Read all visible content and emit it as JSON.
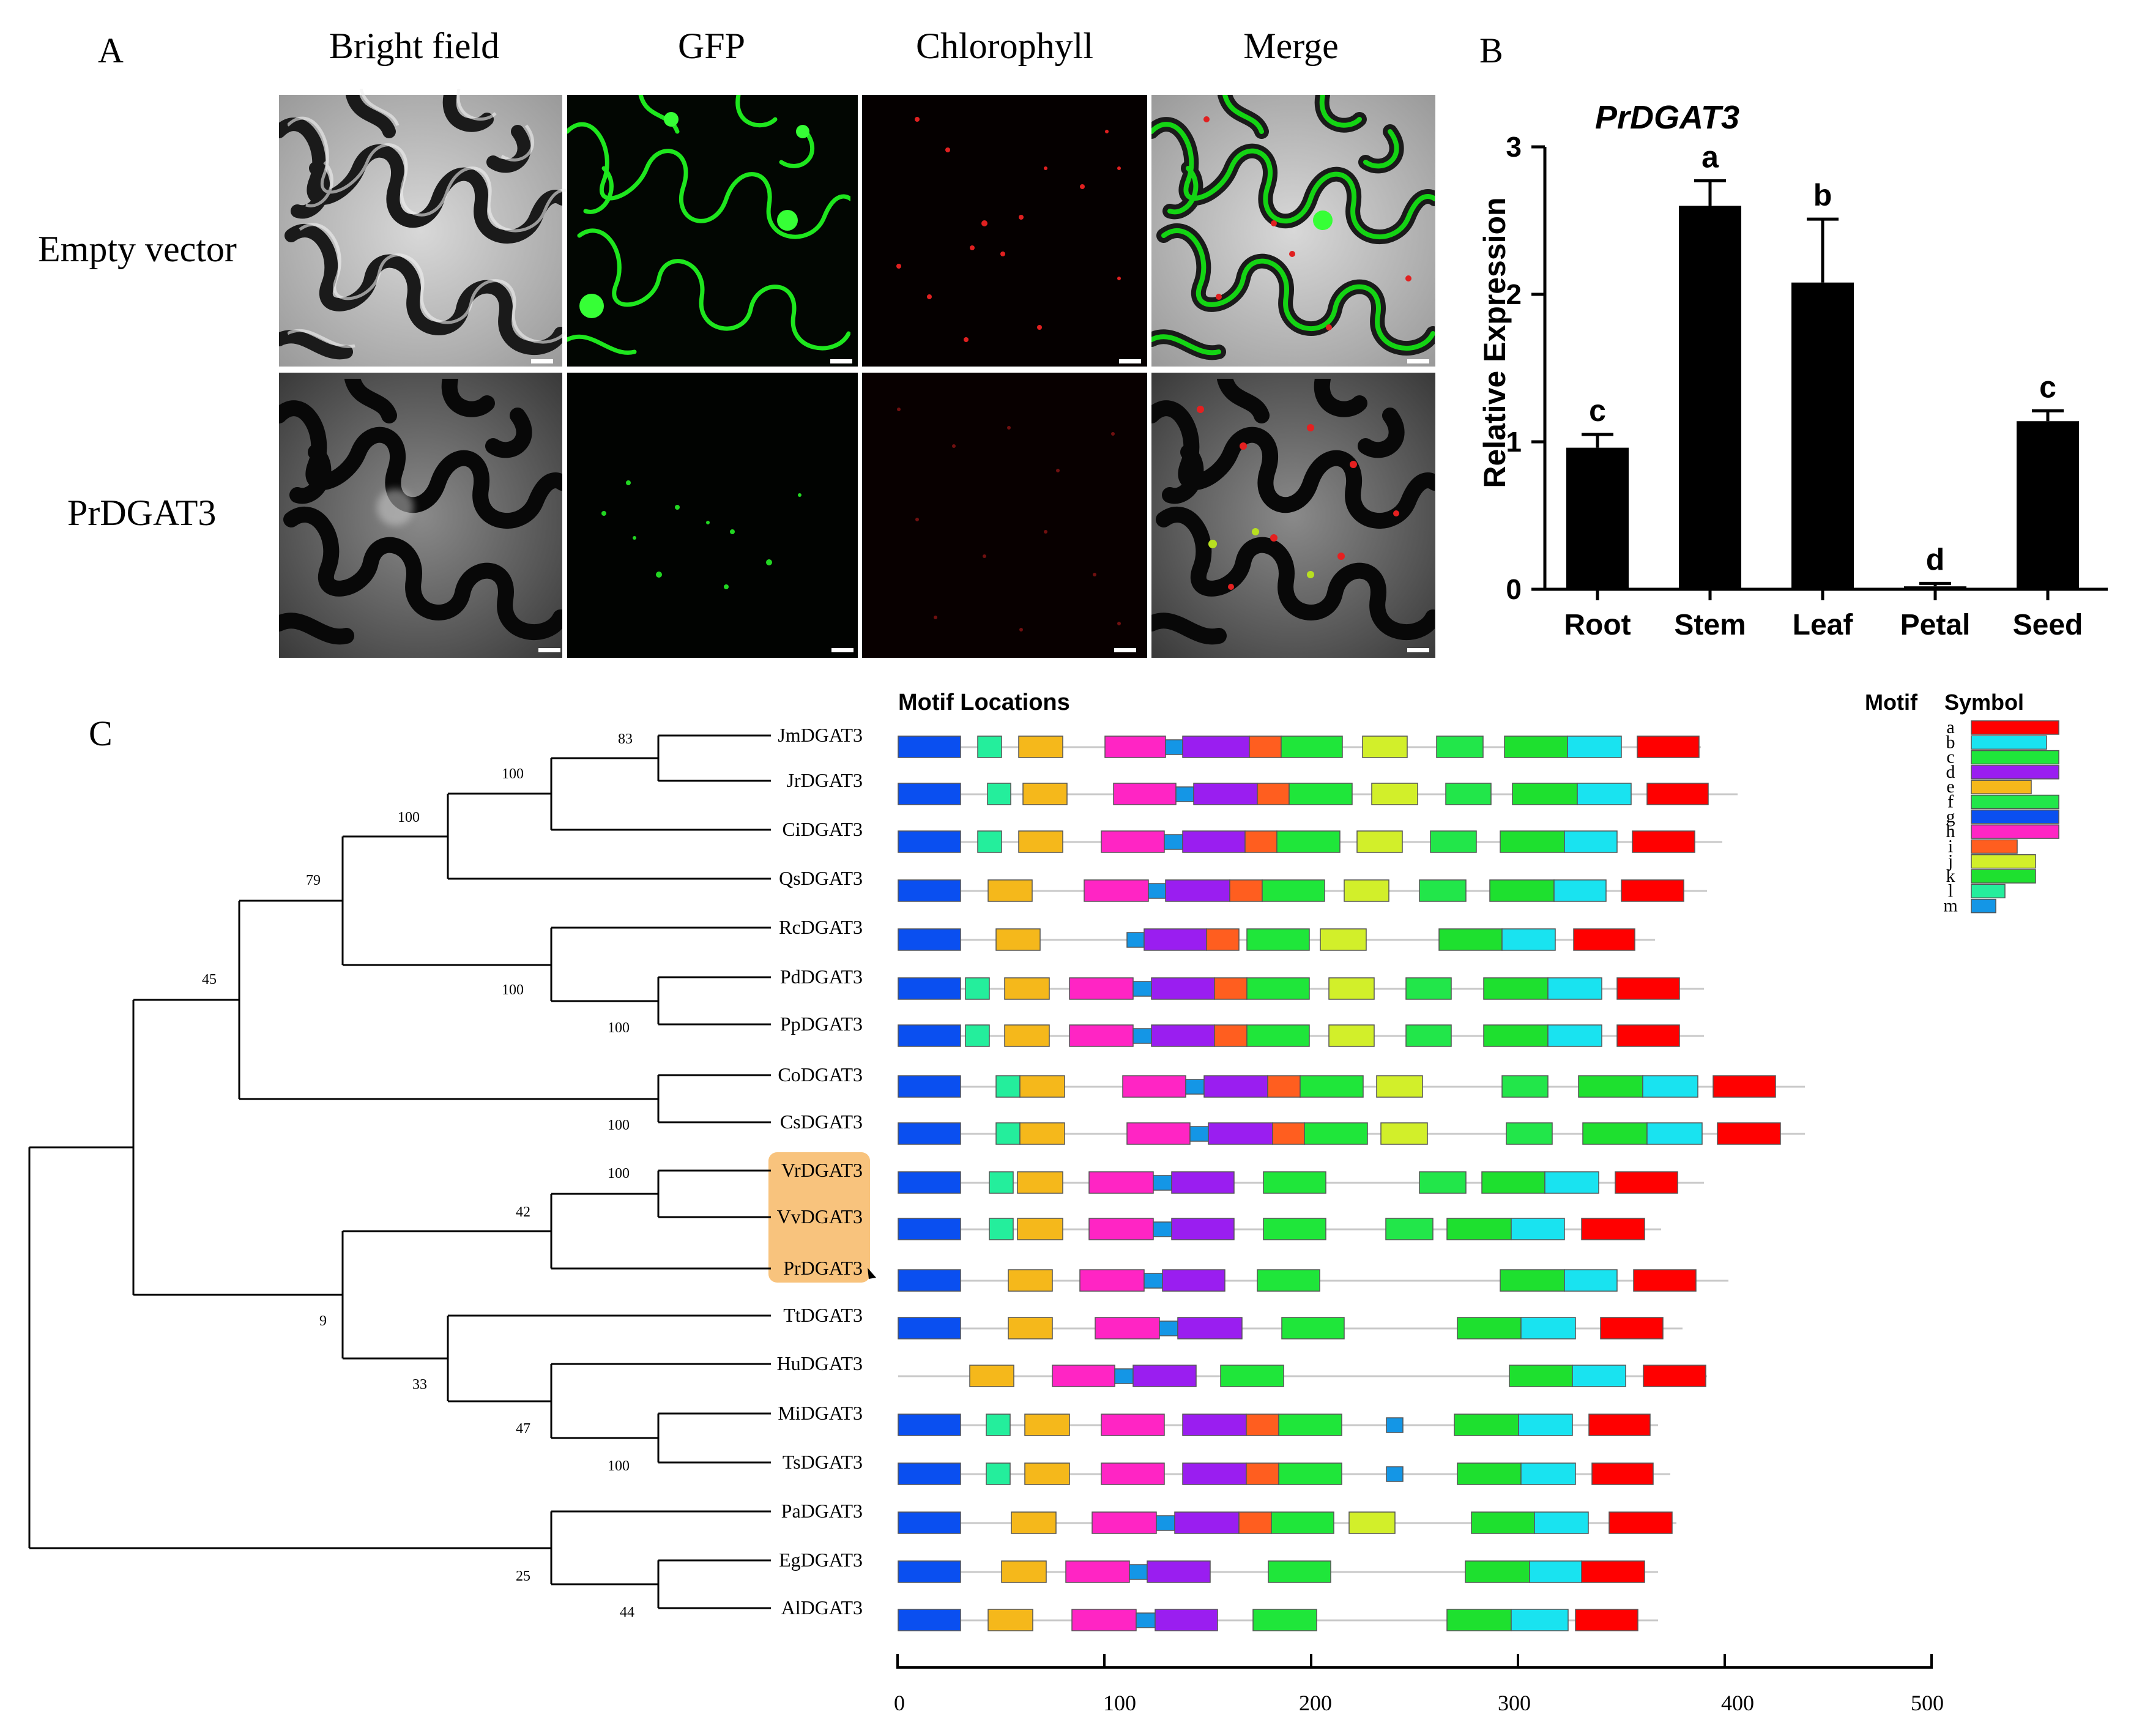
{
  "panel_a": {
    "letter": "A",
    "columns": [
      "Bright field",
      "GFP",
      "Chlorophyll",
      "Merge"
    ],
    "rows": [
      "Empty vector",
      "PrDGAT3"
    ]
  },
  "panel_b": {
    "letter": "B",
    "title": "PrDGAT3",
    "ylabel": "Relative Expression"
  },
  "panel_c": {
    "letter": "C",
    "motif_title": "Motif Locations",
    "legend_header": [
      "Motif",
      "Symbol"
    ],
    "highlight": [
      "VrDGAT3",
      "VvDGAT3",
      "PrDGAT3"
    ],
    "bootstraps": [
      "83",
      "100",
      "100",
      "79",
      "45",
      "100",
      "100",
      "100",
      "100",
      "42",
      "9",
      "33",
      "47",
      "100",
      "25",
      "44"
    ],
    "taxa": [
      "JmDGAT3",
      "JrDGAT3",
      "CiDGAT3",
      "QsDGAT3",
      "RcDGAT3",
      "PdDGAT3",
      "PpDGAT3",
      "CoDGAT3",
      "CsDGAT3",
      "VrDGAT3",
      "VvDGAT3",
      "PrDGAT3",
      "TtDGAT3",
      "HuDGAT3",
      "MiDGAT3",
      "TsDGAT3",
      "PaDGAT3",
      "EgDGAT3",
      "AlDGAT3"
    ],
    "axis_ticks": [
      "0",
      "100",
      "200",
      "300",
      "400",
      "500"
    ],
    "motif_colors": {
      "a": "#ff0000",
      "b": "#19e3f0",
      "c": "#1fe63a",
      "d": "#9a1ef0",
      "e": "#f5b81b",
      "f": "#22e64a",
      "g": "#0a4ff0",
      "h": "#ff25c4",
      "i": "#ff5e1f",
      "j": "#d2ef2a",
      "k": "#1ee02f",
      "l": "#24ee9c",
      "m": "#1496e6"
    },
    "legend": [
      {
        "motif": "a",
        "color": "#ff0000"
      },
      {
        "motif": "b",
        "color": "#19e3f0"
      },
      {
        "motif": "c",
        "color": "#1fe63a"
      },
      {
        "motif": "d",
        "color": "#9a1ef0"
      },
      {
        "motif": "e",
        "color": "#f5b81b"
      },
      {
        "motif": "f",
        "color": "#22e64a"
      },
      {
        "motif": "g",
        "color": "#0a4ff0"
      },
      {
        "motif": "h",
        "color": "#ff25c4"
      },
      {
        "motif": "i",
        "color": "#ff5e1f"
      },
      {
        "motif": "j",
        "color": "#d2ef2a"
      },
      {
        "motif": "k",
        "color": "#1ee02f"
      },
      {
        "motif": "l",
        "color": "#24ee9c"
      },
      {
        "motif": "m",
        "color": "#1496e6"
      }
    ]
  },
  "chart_data": {
    "type": "bar",
    "title": "PrDGAT3",
    "ylabel": "Relative Expression",
    "categories": [
      "Root",
      "Stem",
      "Leaf",
      "Petal",
      "Seed"
    ],
    "values": [
      0.96,
      2.6,
      2.08,
      0.02,
      1.14
    ],
    "errors": [
      0.09,
      0.17,
      0.43,
      0.02,
      0.07
    ],
    "significance": [
      "c",
      "a",
      "b",
      "d",
      "c"
    ],
    "ylim": [
      0,
      3
    ],
    "yticks": [
      "0",
      "1",
      "2",
      "3"
    ],
    "color": "#000000"
  }
}
